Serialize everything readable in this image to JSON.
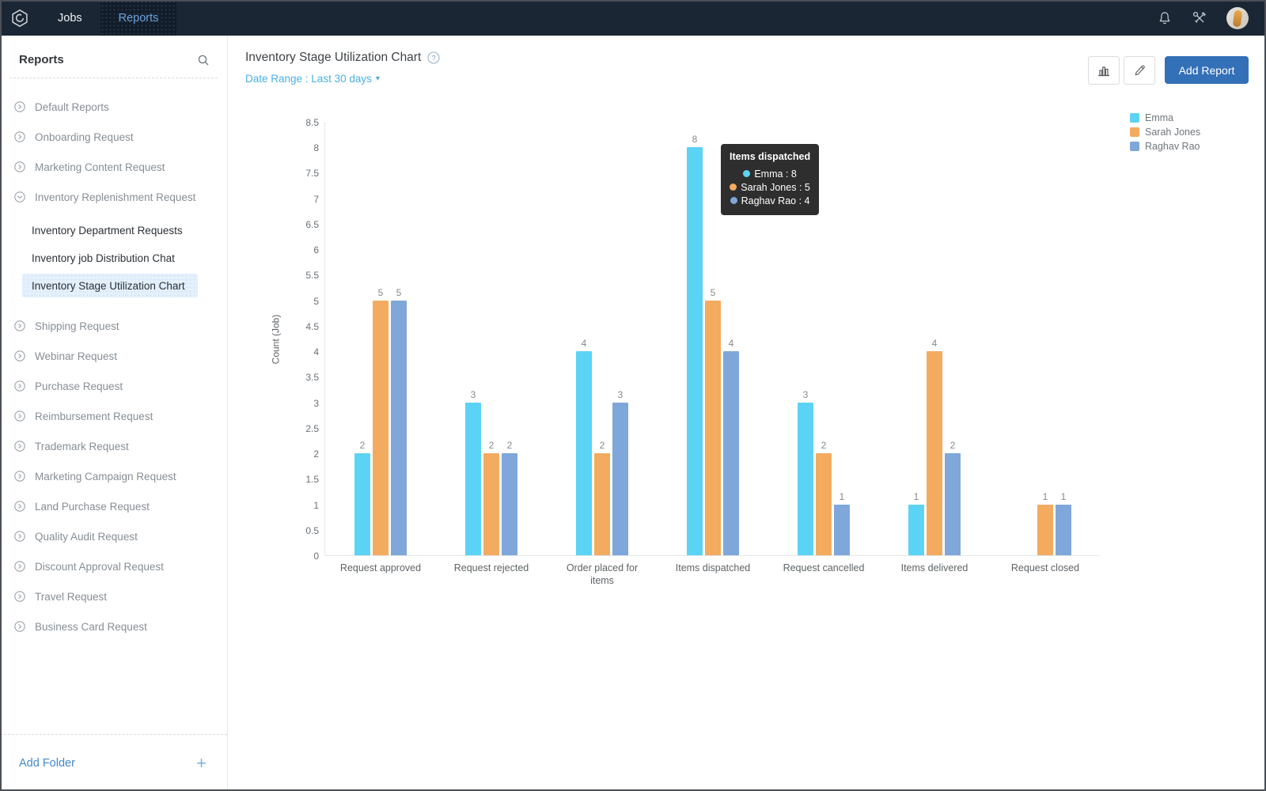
{
  "navbar": {
    "tabs": [
      {
        "label": "Jobs"
      },
      {
        "label": "Reports"
      }
    ]
  },
  "sidebar": {
    "title": "Reports",
    "items": [
      {
        "label": "Default Reports"
      },
      {
        "label": "Onboarding Request"
      },
      {
        "label": "Marketing Content Request"
      },
      {
        "label": "Inventory Replenishment Request",
        "expanded": true
      },
      {
        "label": "Shipping Request"
      },
      {
        "label": "Webinar Request"
      },
      {
        "label": "Purchase Request"
      },
      {
        "label": "Reimbursement Request"
      },
      {
        "label": "Trademark Request"
      },
      {
        "label": "Marketing Campaign Request"
      },
      {
        "label": "Land Purchase Request"
      },
      {
        "label": "Quality Audit Request"
      },
      {
        "label": "Discount Approval Request"
      },
      {
        "label": "Travel Request"
      },
      {
        "label": "Business Card Request"
      }
    ],
    "sub_items": [
      {
        "label": "Inventory Department Requests"
      },
      {
        "label": "Inventory job Distribution Chat"
      },
      {
        "label": "Inventory Stage Utilization Chart",
        "selected": true
      }
    ],
    "add_folder_label": "Add Folder"
  },
  "header": {
    "title": "Inventory Stage Utilization Chart",
    "date_range": "Date Range : Last 30 days",
    "add_report_label": "Add Report"
  },
  "chart_data": {
    "type": "bar",
    "title": "Inventory Stage Utilization Chart",
    "xlabel": "",
    "ylabel": "Count (Job)",
    "ylim": [
      0,
      8.5
    ],
    "ytick_step": 0.5,
    "grid": false,
    "legend_position": "top-right",
    "categories": [
      "Request approved",
      "Request rejected",
      "Order placed for items",
      "Items dispatched",
      "Request cancelled",
      "Items delivered",
      "Request closed"
    ],
    "series": [
      {
        "name": "Emma",
        "color": "#5bd3f4",
        "values": [
          2,
          3,
          4,
          8,
          3,
          1,
          null
        ]
      },
      {
        "name": "Sarah Jones",
        "color": "#f3ab60",
        "values": [
          5,
          2,
          2,
          5,
          2,
          4,
          1
        ]
      },
      {
        "name": "Raghav Rao",
        "color": "#7fa7d9",
        "values": [
          5,
          2,
          3,
          4,
          1,
          2,
          1
        ]
      }
    ],
    "highlight": {
      "series_index": 0,
      "category_index": 3
    }
  },
  "tooltip": {
    "title": "Items dispatched",
    "rows": [
      "Emma : 8",
      "Sarah Jones : 5",
      "Raghav Rao : 4"
    ]
  },
  "colors": {
    "navbar_bg": "#1b2634",
    "active_tab_text": "#6ba3da",
    "add_report_bg": "#3370b7",
    "link_blue": "#49b0e4",
    "selected_item_bg": "#e4f0fb",
    "tooltip_bg": "#2e2e2e"
  }
}
